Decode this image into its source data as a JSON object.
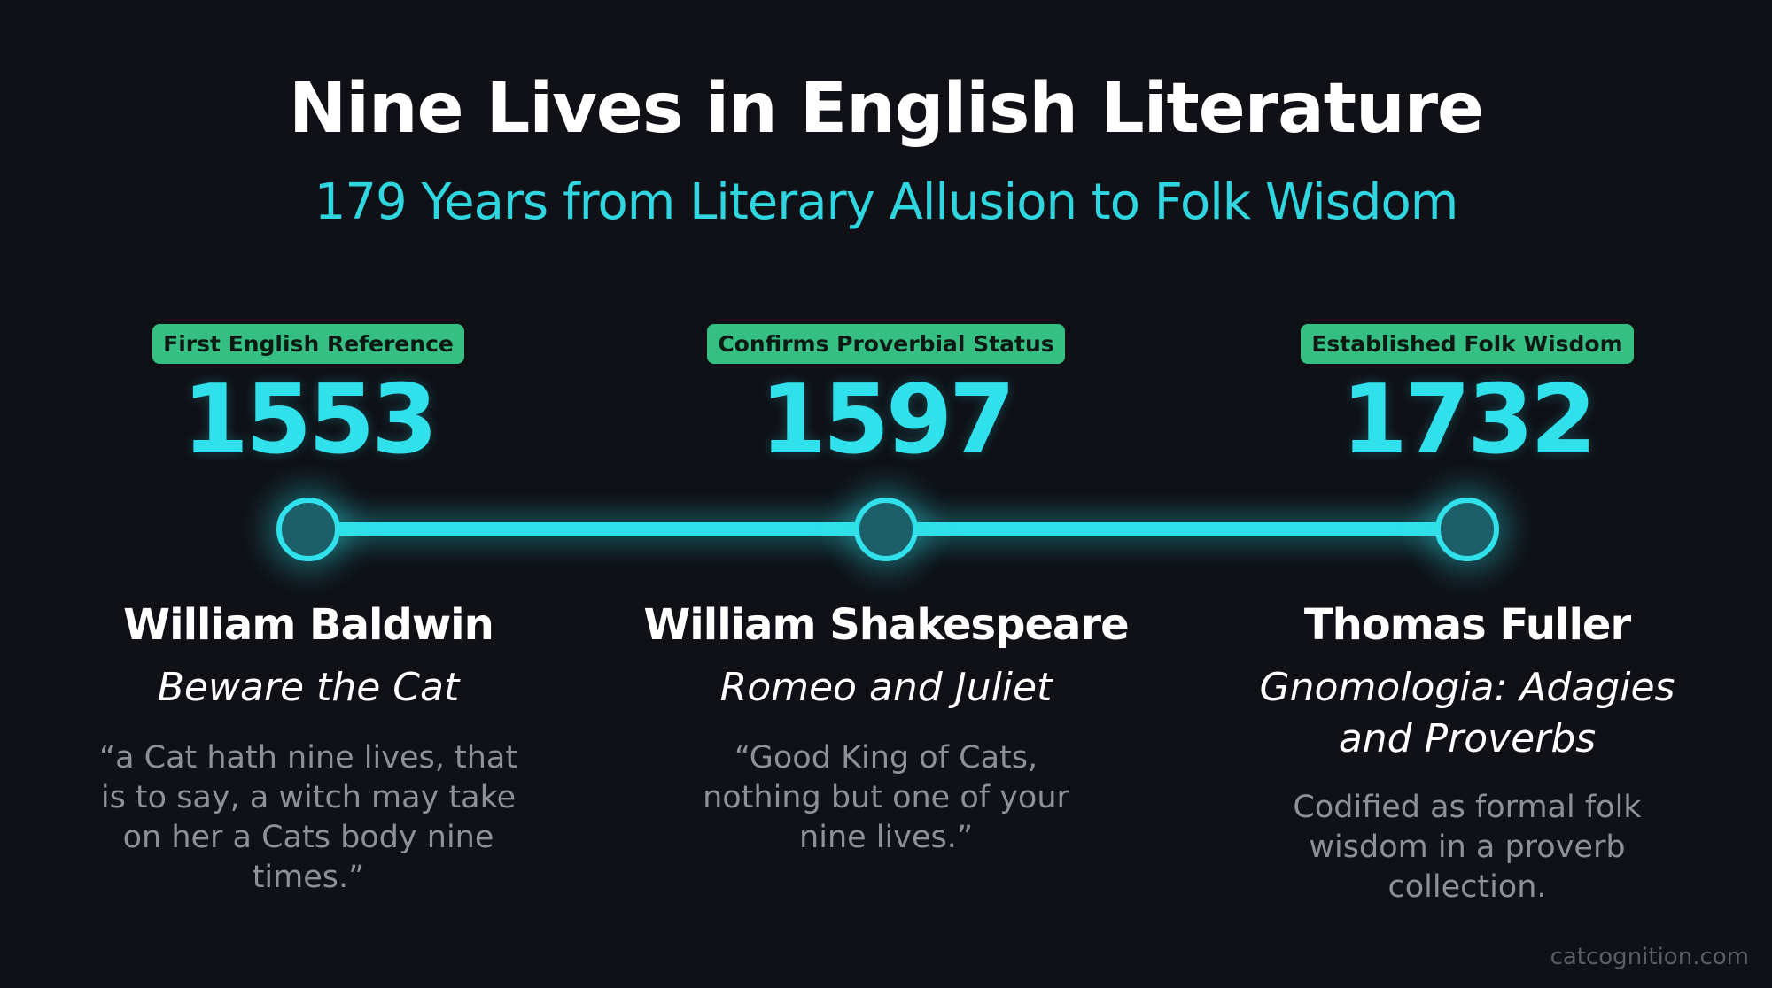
{
  "title": "Nine Lives in English Literature",
  "subtitle": "179 Years from Literary Allusion to Folk Wisdom",
  "colors": {
    "accent": "#30e0ea",
    "badge": "#35bf82",
    "background": "#0f1117"
  },
  "events": [
    {
      "badge": "First English Reference",
      "year": "1553",
      "author": "William Baldwin",
      "work": "Beware the Cat",
      "description": "“a Cat hath nine lives, that is to say, a witch may take on her a Cats body nine times.”"
    },
    {
      "badge": "Confirms Proverbial Status",
      "year": "1597",
      "author": "William Shakespeare",
      "work": "Romeo and Juliet",
      "description": "“Good King of Cats, nothing but one of your nine lives.”"
    },
    {
      "badge": "Established Folk Wisdom",
      "year": "1732",
      "author": "Thomas Fuller",
      "work": "Gnomologia: Adagies and Proverbs",
      "description": "Codified as formal folk wisdom in a proverb collection."
    }
  ],
  "footer": "catcognition.com"
}
